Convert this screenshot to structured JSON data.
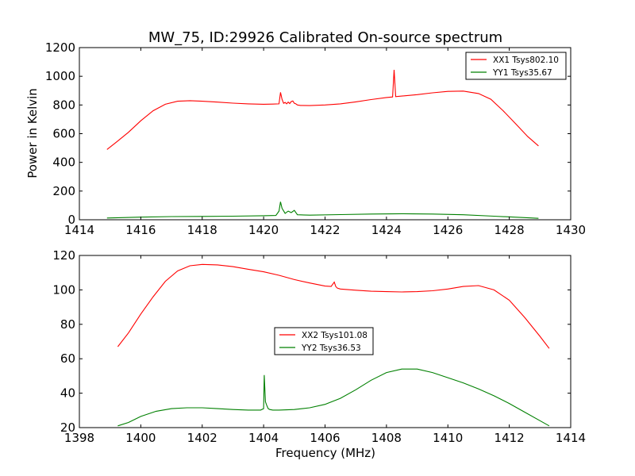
{
  "figure": {
    "title": "MW_75, ID:29926 Calibrated On-source spectrum",
    "xlabel": "Frequency (MHz)",
    "ylabel": "Power in Kelvin"
  },
  "chart_data": [
    {
      "type": "line",
      "title": "MW_75, ID:29926 Calibrated On-source spectrum",
      "ylabel": "Power in Kelvin",
      "xlabel": "",
      "xlim": [
        1414,
        1430
      ],
      "ylim": [
        0,
        1200
      ],
      "xticks": [
        1414,
        1416,
        1418,
        1420,
        1422,
        1424,
        1426,
        1428,
        1430
      ],
      "yticks": [
        0,
        200,
        400,
        600,
        800,
        1000,
        1200
      ],
      "legend": "top-right",
      "grid": false,
      "series": [
        {
          "name": "XX1 Tsys802.10",
          "color": "#ff0000",
          "x": [
            1414.9,
            1415.2,
            1415.6,
            1416.0,
            1416.4,
            1416.8,
            1417.2,
            1417.6,
            1418.0,
            1418.5,
            1419.0,
            1419.5,
            1420.0,
            1420.3,
            1420.5,
            1420.55,
            1420.6,
            1420.65,
            1420.7,
            1420.75,
            1420.8,
            1420.85,
            1420.9,
            1420.95,
            1421.0,
            1421.05,
            1421.1,
            1421.2,
            1421.5,
            1422.0,
            1422.5,
            1423.0,
            1423.5,
            1424.0,
            1424.2,
            1424.25,
            1424.3,
            1424.5,
            1425.0,
            1425.5,
            1426.0,
            1426.5,
            1427.0,
            1427.4,
            1427.8,
            1428.2,
            1428.6,
            1428.95
          ],
          "y": [
            490,
            540,
            610,
            690,
            760,
            805,
            826,
            830,
            826,
            820,
            813,
            808,
            805,
            806,
            808,
            888,
            840,
            812,
            818,
            808,
            820,
            810,
            824,
            828,
            812,
            808,
            800,
            797,
            796,
            800,
            808,
            822,
            838,
            852,
            856,
            1045,
            858,
            862,
            872,
            885,
            895,
            897,
            880,
            840,
            760,
            670,
            580,
            515
          ]
        },
        {
          "name": "YY1 Tsys35.67",
          "color": "#008000",
          "x": [
            1414.9,
            1416.0,
            1417.0,
            1418.0,
            1419.0,
            1420.0,
            1420.4,
            1420.5,
            1420.55,
            1420.6,
            1420.7,
            1420.8,
            1420.9,
            1421.0,
            1421.1,
            1421.5,
            1422.5,
            1423.5,
            1424.5,
            1425.5,
            1426.5,
            1427.5,
            1428.5,
            1428.95
          ],
          "y": [
            12,
            18,
            22,
            23,
            25,
            28,
            30,
            60,
            125,
            80,
            45,
            60,
            50,
            65,
            35,
            32,
            36,
            40,
            42,
            40,
            35,
            25,
            15,
            10
          ]
        }
      ]
    },
    {
      "type": "line",
      "title": "",
      "xlabel": "Frequency (MHz)",
      "ylabel": "",
      "xlim": [
        1398,
        1414
      ],
      "ylim": [
        20,
        120
      ],
      "xticks": [
        1398,
        1400,
        1402,
        1404,
        1406,
        1408,
        1410,
        1412,
        1414
      ],
      "yticks": [
        20,
        40,
        60,
        80,
        100,
        120
      ],
      "legend": "center",
      "grid": false,
      "series": [
        {
          "name": "XX2 Tsys101.08",
          "color": "#ff0000",
          "x": [
            1399.25,
            1399.6,
            1400.0,
            1400.4,
            1400.8,
            1401.2,
            1401.6,
            1402.0,
            1402.5,
            1403.0,
            1403.5,
            1404.0,
            1404.5,
            1405.0,
            1405.5,
            1406.0,
            1406.2,
            1406.3,
            1406.35,
            1406.4,
            1406.5,
            1407.0,
            1407.5,
            1408.0,
            1408.5,
            1409.0,
            1409.5,
            1410.0,
            1410.5,
            1411.0,
            1411.5,
            1412.0,
            1412.5,
            1413.0,
            1413.3
          ],
          "y": [
            67,
            75,
            86,
            96,
            105,
            111,
            114,
            114.8,
            114.5,
            113.5,
            112,
            110.5,
            108.5,
            106,
            104,
            102.2,
            102,
            104.5,
            102,
            101,
            100.5,
            99.8,
            99.2,
            99,
            98.8,
            99,
            99.5,
            100.5,
            102,
            102.5,
            100,
            94,
            84,
            73,
            66
          ]
        },
        {
          "name": "YY2 Tsys36.53",
          "color": "#008000",
          "x": [
            1399.25,
            1399.6,
            1400.0,
            1400.5,
            1401.0,
            1401.5,
            1402.0,
            1402.5,
            1403.0,
            1403.5,
            1403.9,
            1404.0,
            1404.02,
            1404.06,
            1404.1,
            1404.15,
            1404.2,
            1404.3,
            1404.5,
            1405.0,
            1405.5,
            1406.0,
            1406.5,
            1407.0,
            1407.5,
            1408.0,
            1408.5,
            1409.0,
            1409.5,
            1410.0,
            1410.5,
            1411.0,
            1411.5,
            1412.0,
            1412.5,
            1413.0,
            1413.3
          ],
          "y": [
            21,
            23,
            26.5,
            29.5,
            31,
            31.5,
            31.5,
            31,
            30.5,
            30.2,
            30.2,
            31,
            50.5,
            35,
            33,
            31,
            30.5,
            30.2,
            30.2,
            30.5,
            31.5,
            33.5,
            37,
            42,
            47.5,
            52,
            54,
            54,
            52,
            49,
            46,
            42.5,
            38.5,
            34,
            29,
            24,
            21
          ]
        }
      ]
    }
  ]
}
